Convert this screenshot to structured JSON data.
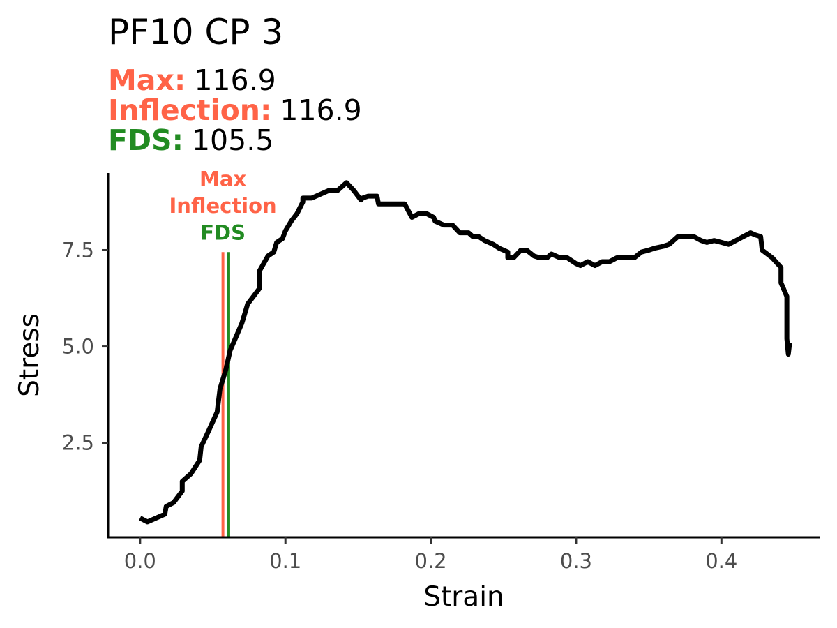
{
  "title": "PF10 CP 3",
  "stats": [
    {
      "label": "Max:",
      "value": "116.9",
      "color": "#ff6347"
    },
    {
      "label": "Inflection:",
      "value": "116.9",
      "color": "#ff6347"
    },
    {
      "label": "FDS:",
      "value": "105.5",
      "color": "#228b22"
    }
  ],
  "chart_data": {
    "type": "line",
    "xlabel": "Strain",
    "ylabel": "Stress",
    "xlim": [
      -0.022,
      0.468
    ],
    "ylim": [
      0.05,
      9.5
    ],
    "xticks": [
      0.0,
      0.1,
      0.2,
      0.3,
      0.4
    ],
    "xtick_labels": [
      "0.0",
      "0.1",
      "0.2",
      "0.3",
      "0.4"
    ],
    "yticks": [
      2.5,
      5.0,
      7.5
    ],
    "ytick_labels": [
      "2.5",
      "5.0",
      "7.5"
    ],
    "grid": false,
    "series": [
      {
        "color": "#000000",
        "x": [
          0.0,
          0.005,
          0.017,
          0.018,
          0.023,
          0.029,
          0.029,
          0.035,
          0.041,
          0.042,
          0.047,
          0.053,
          0.055,
          0.059,
          0.062,
          0.066,
          0.07,
          0.072,
          0.074,
          0.078,
          0.082,
          0.082,
          0.088,
          0.092,
          0.094,
          0.098,
          0.1,
          0.104,
          0.108,
          0.112,
          0.112,
          0.118,
          0.124,
          0.13,
          0.136,
          0.142,
          0.147,
          0.152,
          0.153,
          0.157,
          0.163,
          0.164,
          0.17,
          0.182,
          0.187,
          0.192,
          0.197,
          0.202,
          0.203,
          0.209,
          0.215,
          0.22,
          0.226,
          0.229,
          0.233,
          0.237,
          0.243,
          0.247,
          0.253,
          0.253,
          0.257,
          0.262,
          0.266,
          0.271,
          0.275,
          0.28,
          0.283,
          0.289,
          0.294,
          0.3,
          0.303,
          0.308,
          0.313,
          0.318,
          0.323,
          0.328,
          0.334,
          0.34,
          0.345,
          0.35,
          0.354,
          0.36,
          0.364,
          0.367,
          0.37,
          0.375,
          0.381,
          0.386,
          0.39,
          0.395,
          0.4,
          0.405,
          0.41,
          0.415,
          0.42,
          0.423,
          0.427,
          0.428,
          0.435,
          0.441,
          0.441,
          0.445,
          0.445,
          0.446,
          0.447
        ],
        "y": [
          0.55,
          0.45,
          0.65,
          0.85,
          0.95,
          1.25,
          1.5,
          1.7,
          2.05,
          2.4,
          2.8,
          3.3,
          3.9,
          4.4,
          4.9,
          5.25,
          5.6,
          5.85,
          6.1,
          6.3,
          6.5,
          6.95,
          7.35,
          7.45,
          7.7,
          7.8,
          8.0,
          8.25,
          8.45,
          8.75,
          8.85,
          8.85,
          8.95,
          9.05,
          9.05,
          9.25,
          9.05,
          8.8,
          8.85,
          8.9,
          8.9,
          8.7,
          8.7,
          8.7,
          8.35,
          8.45,
          8.45,
          8.35,
          8.25,
          8.15,
          8.15,
          7.95,
          7.95,
          7.85,
          7.85,
          7.75,
          7.65,
          7.55,
          7.45,
          7.3,
          7.3,
          7.5,
          7.5,
          7.35,
          7.3,
          7.3,
          7.4,
          7.3,
          7.3,
          7.15,
          7.1,
          7.2,
          7.1,
          7.2,
          7.2,
          7.3,
          7.3,
          7.3,
          7.45,
          7.5,
          7.55,
          7.6,
          7.65,
          7.75,
          7.85,
          7.85,
          7.85,
          7.75,
          7.7,
          7.75,
          7.7,
          7.65,
          7.75,
          7.85,
          7.95,
          7.9,
          7.85,
          7.5,
          7.3,
          7.05,
          6.65,
          6.3,
          5.2,
          4.8,
          5.1
        ]
      }
    ],
    "vlines": [
      {
        "x": 0.057,
        "color": "#ff6347",
        "width": 4
      },
      {
        "x": 0.061,
        "color": "#228b22",
        "width": 4
      }
    ],
    "annotations": [
      {
        "text": "Max",
        "x": 0.057,
        "y": 9.35,
        "color": "#ff6347"
      },
      {
        "text": "Inflection",
        "x": 0.057,
        "y": 8.65,
        "color": "#ff6347"
      },
      {
        "text": "FDS",
        "x": 0.057,
        "y": 7.95,
        "color": "#228b22"
      }
    ]
  }
}
